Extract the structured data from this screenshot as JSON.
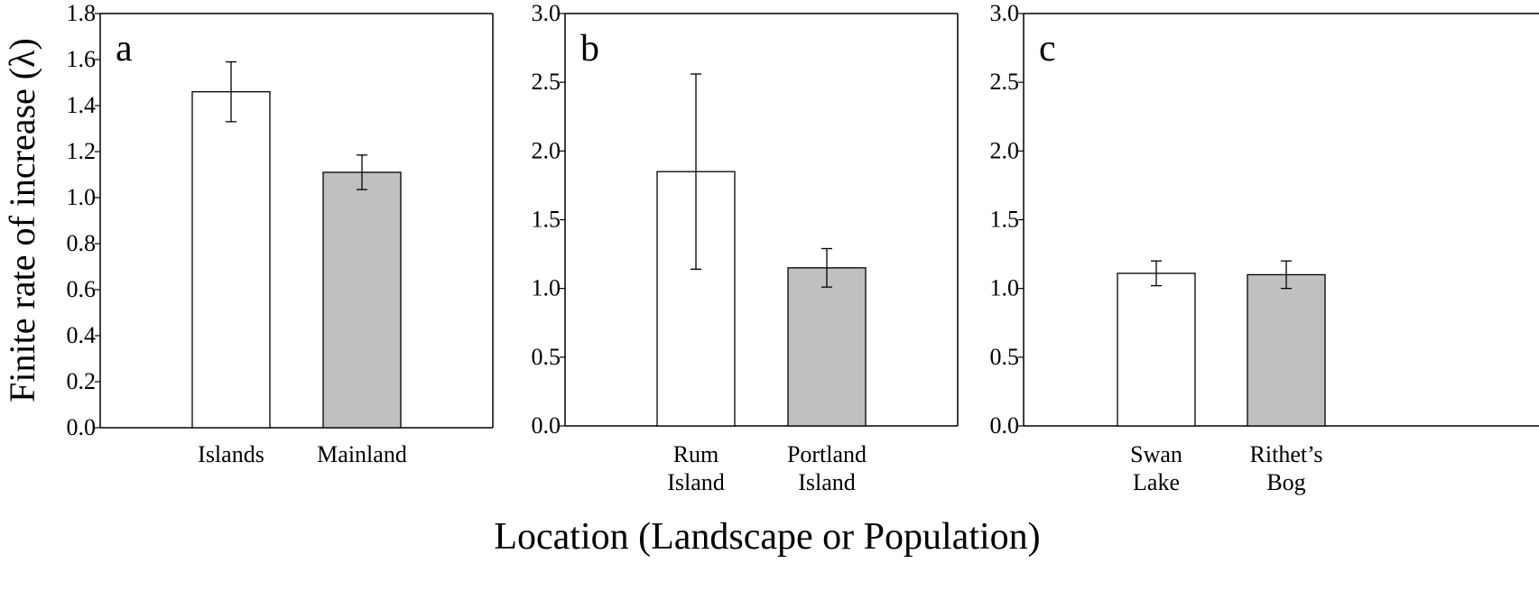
{
  "colors": {
    "islands_fill": "#ffffff",
    "mainland_fill": "#c0c0c0",
    "axis": "#000000"
  },
  "ylabel": "Finite rate of increase (λ)",
  "xlabel": "Location (Landscape or Population)",
  "chart_data": [
    {
      "type": "bar",
      "panel_label": "a",
      "categories": [
        [
          "Islands"
        ],
        [
          "Mainland"
        ]
      ],
      "values": [
        1.46,
        1.11
      ],
      "error": [
        0.13,
        0.075
      ],
      "fills": [
        "#ffffff",
        "#c0c0c0"
      ],
      "ylim": [
        0,
        1.8
      ],
      "yticks": [
        "0.0",
        "0.2",
        "0.4",
        "0.6",
        "0.8",
        "1.0",
        "1.2",
        "1.4",
        "1.6",
        "1.8"
      ],
      "ytick_values": [
        0,
        0.2,
        0.4,
        0.6,
        0.8,
        1.0,
        1.2,
        1.4,
        1.6,
        1.8
      ],
      "ylabel": "Finite rate of increase (λ)",
      "grid": false
    },
    {
      "type": "bar",
      "panel_label": "b",
      "categories": [
        [
          "Rum",
          "Island"
        ],
        [
          "Portland",
          "Island"
        ]
      ],
      "values": [
        1.85,
        1.15
      ],
      "error": [
        0.71,
        0.14
      ],
      "fills": [
        "#ffffff",
        "#c0c0c0"
      ],
      "ylim": [
        0,
        3.0
      ],
      "yticks": [
        "0.0",
        "0.5",
        "1.0",
        "1.5",
        "2.0",
        "2.5",
        "3.0"
      ],
      "ytick_values": [
        0,
        0.5,
        1.0,
        1.5,
        2.0,
        2.5,
        3.0
      ],
      "grid": false
    },
    {
      "type": "bar",
      "panel_label": "c",
      "categories": [
        [
          "Swan",
          "Lake"
        ],
        [
          "Rithet’s",
          "Bog"
        ]
      ],
      "values": [
        1.11,
        1.1
      ],
      "error": [
        0.09,
        0.1
      ],
      "fills": [
        "#ffffff",
        "#c0c0c0"
      ],
      "ylim": [
        0,
        3.0
      ],
      "yticks": [
        "0.0",
        "0.5",
        "1.0",
        "1.5",
        "2.0",
        "2.5",
        "3.0"
      ],
      "ytick_values": [
        0,
        0.5,
        1.0,
        1.5,
        2.0,
        2.5,
        3.0
      ],
      "grid": false
    }
  ]
}
